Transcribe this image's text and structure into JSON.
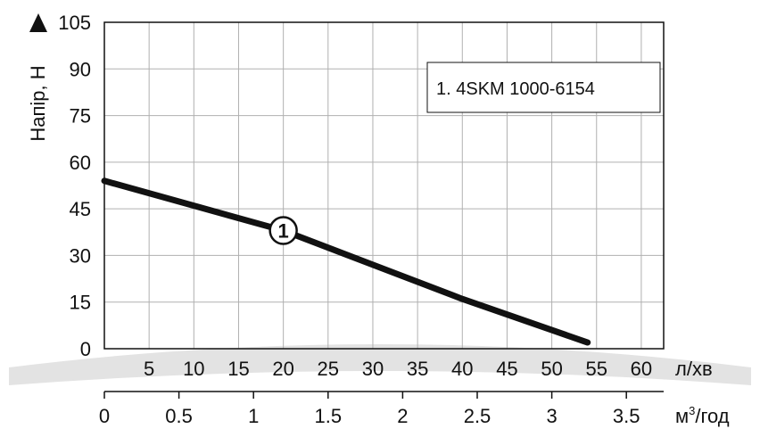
{
  "chart_data": {
    "type": "line",
    "legend_text": "1. 4SKM 1000-6154",
    "ylabel": "Напір, Н",
    "ylim": [
      0,
      105
    ],
    "yticks": [
      "0",
      "15",
      "30",
      "45",
      "60",
      "75",
      "90",
      "105"
    ],
    "x_primary": {
      "unit": "л/хв",
      "lim": [
        0,
        62.5
      ],
      "ticks": [
        "5",
        "10",
        "15",
        "20",
        "25",
        "30",
        "35",
        "40",
        "45",
        "50",
        "55",
        "60"
      ]
    },
    "x_secondary": {
      "unit_base": "м",
      "unit_sup": "3",
      "unit_tail": "/год",
      "lim": [
        0,
        3.75
      ],
      "ticks": [
        "0",
        "0.5",
        "1",
        "1.5",
        "2",
        "2.5",
        "3",
        "3.5"
      ]
    },
    "grid": true,
    "series": [
      {
        "label": "1",
        "x": [
          0,
          10,
          20,
          30,
          40,
          50,
          54
        ],
        "y": [
          54,
          46,
          38,
          27,
          16,
          6,
          2
        ]
      }
    ],
    "colors": {
      "line": "#111111",
      "grid": "#b0b0b0",
      "axis": "#111111",
      "band": "#e3e3e3"
    }
  }
}
